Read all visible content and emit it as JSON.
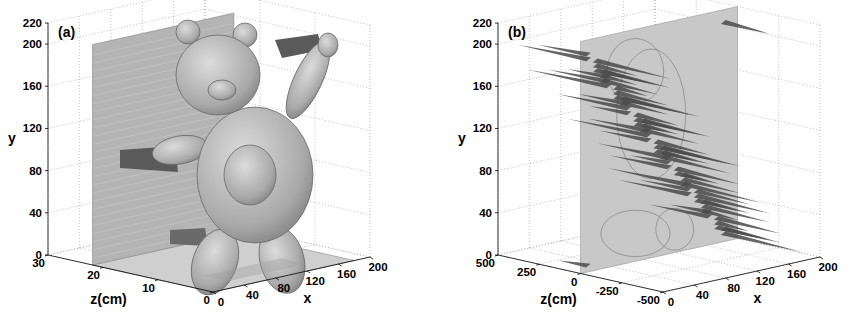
{
  "chart_data": [
    {
      "type": "surface3d",
      "title": "(a)",
      "x_label": "x",
      "y_label": "y",
      "z_label": "z(cm)",
      "xlim": [
        0,
        200
      ],
      "xticks": [
        0,
        40,
        80,
        120,
        160,
        200
      ],
      "ylim": [
        0,
        220
      ],
      "yticks": [
        0,
        40,
        80,
        120,
        160,
        200,
        220
      ],
      "zlim": [
        0,
        30
      ],
      "zticks": [
        0,
        10,
        20,
        30
      ],
      "grid": true,
      "color": "#b4b4b4"
    },
    {
      "type": "surface3d",
      "title": "(b)",
      "x_label": "x",
      "y_label": "y",
      "z_label": "z(cm)",
      "xlim": [
        0,
        200
      ],
      "xticks": [
        0,
        40,
        80,
        120,
        160,
        200
      ],
      "ylim": [
        0,
        220
      ],
      "yticks": [
        0,
        40,
        80,
        120,
        160,
        200,
        220
      ],
      "zlim": [
        -500,
        500
      ],
      "zticks": [
        -500,
        -250,
        0,
        250,
        500
      ],
      "grid": true,
      "color": "#c8c8c8"
    }
  ]
}
